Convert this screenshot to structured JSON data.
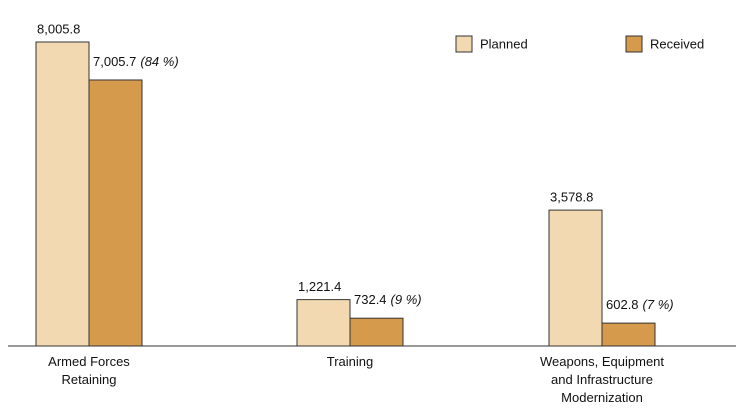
{
  "chart_data": {
    "type": "bar",
    "categories": [
      "Armed Forces Retaining",
      "Training",
      "Weapons, Equipment and Infrastructure Modernization"
    ],
    "series": [
      {
        "name": "Planned",
        "color": "#f3d9b1",
        "values": [
          8005.8,
          1221.4,
          3578.8
        ],
        "value_labels": [
          "8,005.8",
          "1,221.4",
          "3,578.8"
        ]
      },
      {
        "name": "Received",
        "color": "#d59a4c",
        "values": [
          7005.7,
          732.4,
          602.8
        ],
        "value_labels": [
          "7,005.7",
          "732.4",
          "602.8"
        ],
        "share_labels": [
          "(84 %)",
          "(9 %)",
          "(7 %)"
        ]
      }
    ],
    "legend": "top-right"
  }
}
